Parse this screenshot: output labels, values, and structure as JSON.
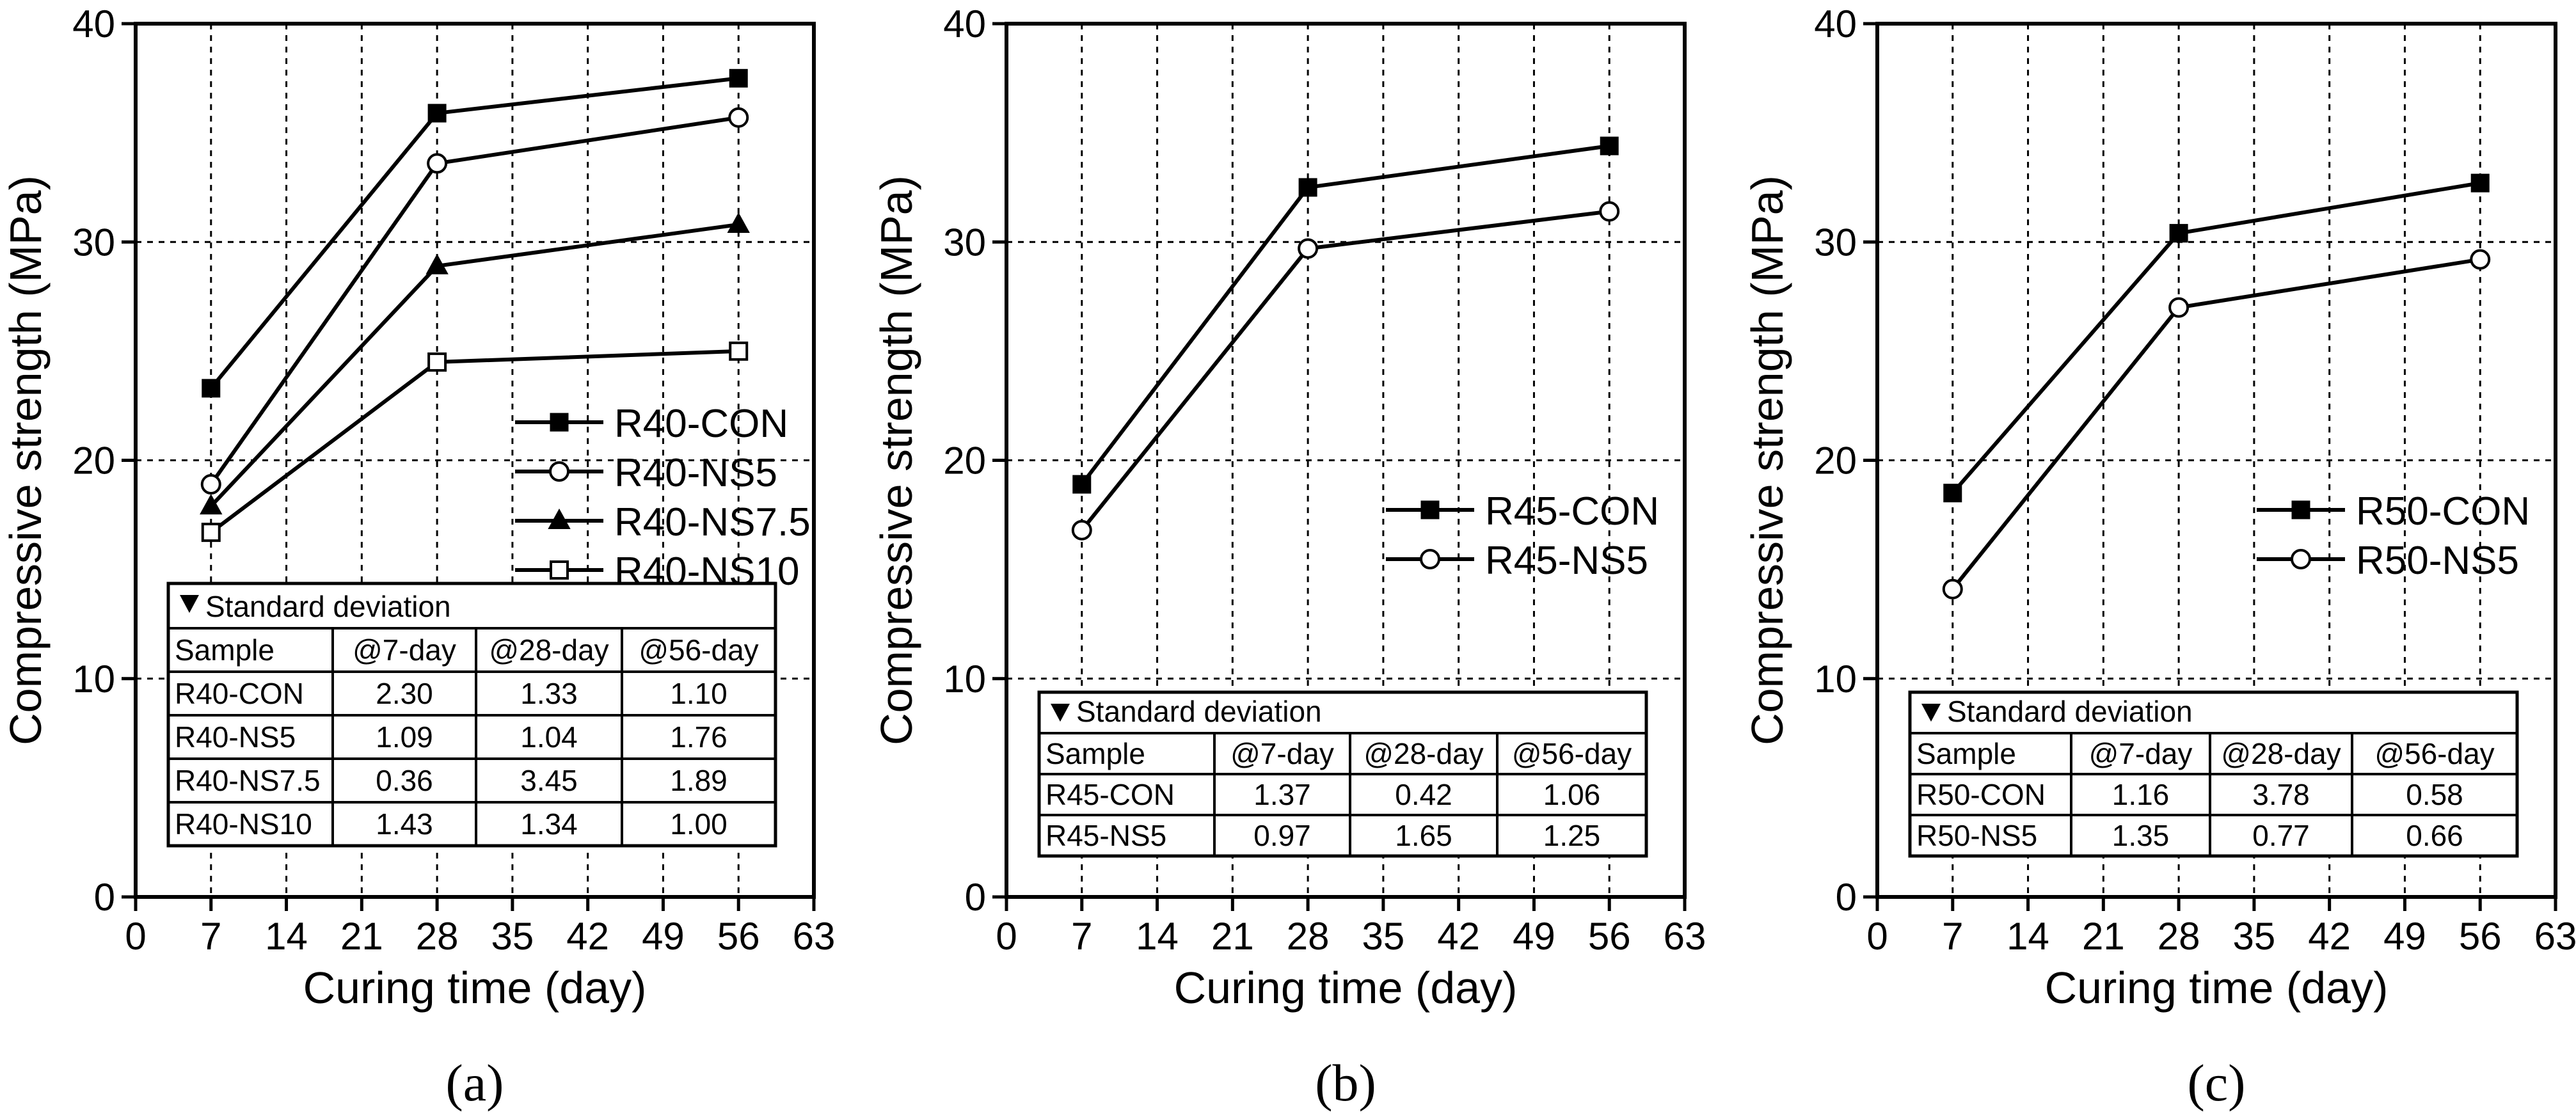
{
  "chart_data": [
    {
      "type": "line",
      "panel_label": "(a)",
      "xlabel": "Curing time (day)",
      "ylabel": "Compressive strength (MPa)",
      "xlim": [
        0,
        63
      ],
      "ylim": [
        0,
        40
      ],
      "xticks": [
        0,
        7,
        14,
        21,
        28,
        35,
        42,
        49,
        56,
        63
      ],
      "yticks": [
        0,
        10,
        20,
        30,
        40
      ],
      "grid": true,
      "x": [
        7,
        28,
        56
      ],
      "series": [
        {
          "name": "R40-CON",
          "marker": "square-filled",
          "values": [
            23.3,
            35.9,
            37.5
          ]
        },
        {
          "name": "R40-NS5",
          "marker": "circle-open",
          "values": [
            18.9,
            33.6,
            35.7
          ]
        },
        {
          "name": "R40-NS7.5",
          "marker": "triangle-filled",
          "values": [
            17.9,
            28.9,
            30.8
          ]
        },
        {
          "name": "R40-NS10",
          "marker": "square-open",
          "values": [
            16.7,
            24.5,
            25.0
          ]
        }
      ],
      "legend_position": "right",
      "sd_table": {
        "title": "Standard deviation",
        "headers": [
          "Sample",
          "@7-day",
          "@28-day",
          "@56-day"
        ],
        "rows": [
          [
            "R40-CON",
            "2.30",
            "1.33",
            "1.10"
          ],
          [
            "R40-NS5",
            "1.09",
            "1.04",
            "1.76"
          ],
          [
            "R40-NS7.5",
            "0.36",
            "3.45",
            "1.89"
          ],
          [
            "R40-NS10",
            "1.43",
            "1.34",
            "1.00"
          ]
        ]
      }
    },
    {
      "type": "line",
      "panel_label": "(b)",
      "xlabel": "Curing time (day)",
      "ylabel": "Compressive strength (MPa)",
      "xlim": [
        0,
        63
      ],
      "ylim": [
        0,
        40
      ],
      "xticks": [
        0,
        7,
        14,
        21,
        28,
        35,
        42,
        49,
        56,
        63
      ],
      "yticks": [
        0,
        10,
        20,
        30,
        40
      ],
      "grid": true,
      "x": [
        7,
        28,
        56
      ],
      "series": [
        {
          "name": "R45-CON",
          "marker": "square-filled",
          "values": [
            18.9,
            32.5,
            34.4
          ]
        },
        {
          "name": "R45-NS5",
          "marker": "circle-open",
          "values": [
            16.8,
            29.7,
            31.4
          ]
        }
      ],
      "legend_position": "right",
      "sd_table": {
        "title": "Standard deviation",
        "headers": [
          "Sample",
          "@7-day",
          "@28-day",
          "@56-day"
        ],
        "rows": [
          [
            "R45-CON",
            "1.37",
            "0.42",
            "1.06"
          ],
          [
            "R45-NS5",
            "0.97",
            "1.65",
            "1.25"
          ]
        ]
      }
    },
    {
      "type": "line",
      "panel_label": "(c)",
      "xlabel": "Curing time (day)",
      "ylabel": "Compressive strength (MPa)",
      "xlim": [
        0,
        63
      ],
      "ylim": [
        0,
        40
      ],
      "xticks": [
        0,
        7,
        14,
        21,
        28,
        35,
        42,
        49,
        56,
        63
      ],
      "yticks": [
        0,
        10,
        20,
        30,
        40
      ],
      "grid": true,
      "x": [
        7,
        28,
        56
      ],
      "series": [
        {
          "name": "R50-CON",
          "marker": "square-filled",
          "values": [
            18.5,
            30.4,
            32.7
          ]
        },
        {
          "name": "R50-NS5",
          "marker": "circle-open",
          "values": [
            14.1,
            27.0,
            29.2
          ]
        }
      ],
      "legend_position": "right",
      "sd_table": {
        "title": "Standard deviation",
        "headers": [
          "Sample",
          "@7-day",
          "@28-day",
          "@56-day"
        ],
        "rows": [
          [
            "R50-CON",
            "1.16",
            "3.78",
            "0.58"
          ],
          [
            "R50-NS5",
            "1.35",
            "0.77",
            "0.66"
          ]
        ]
      }
    }
  ]
}
